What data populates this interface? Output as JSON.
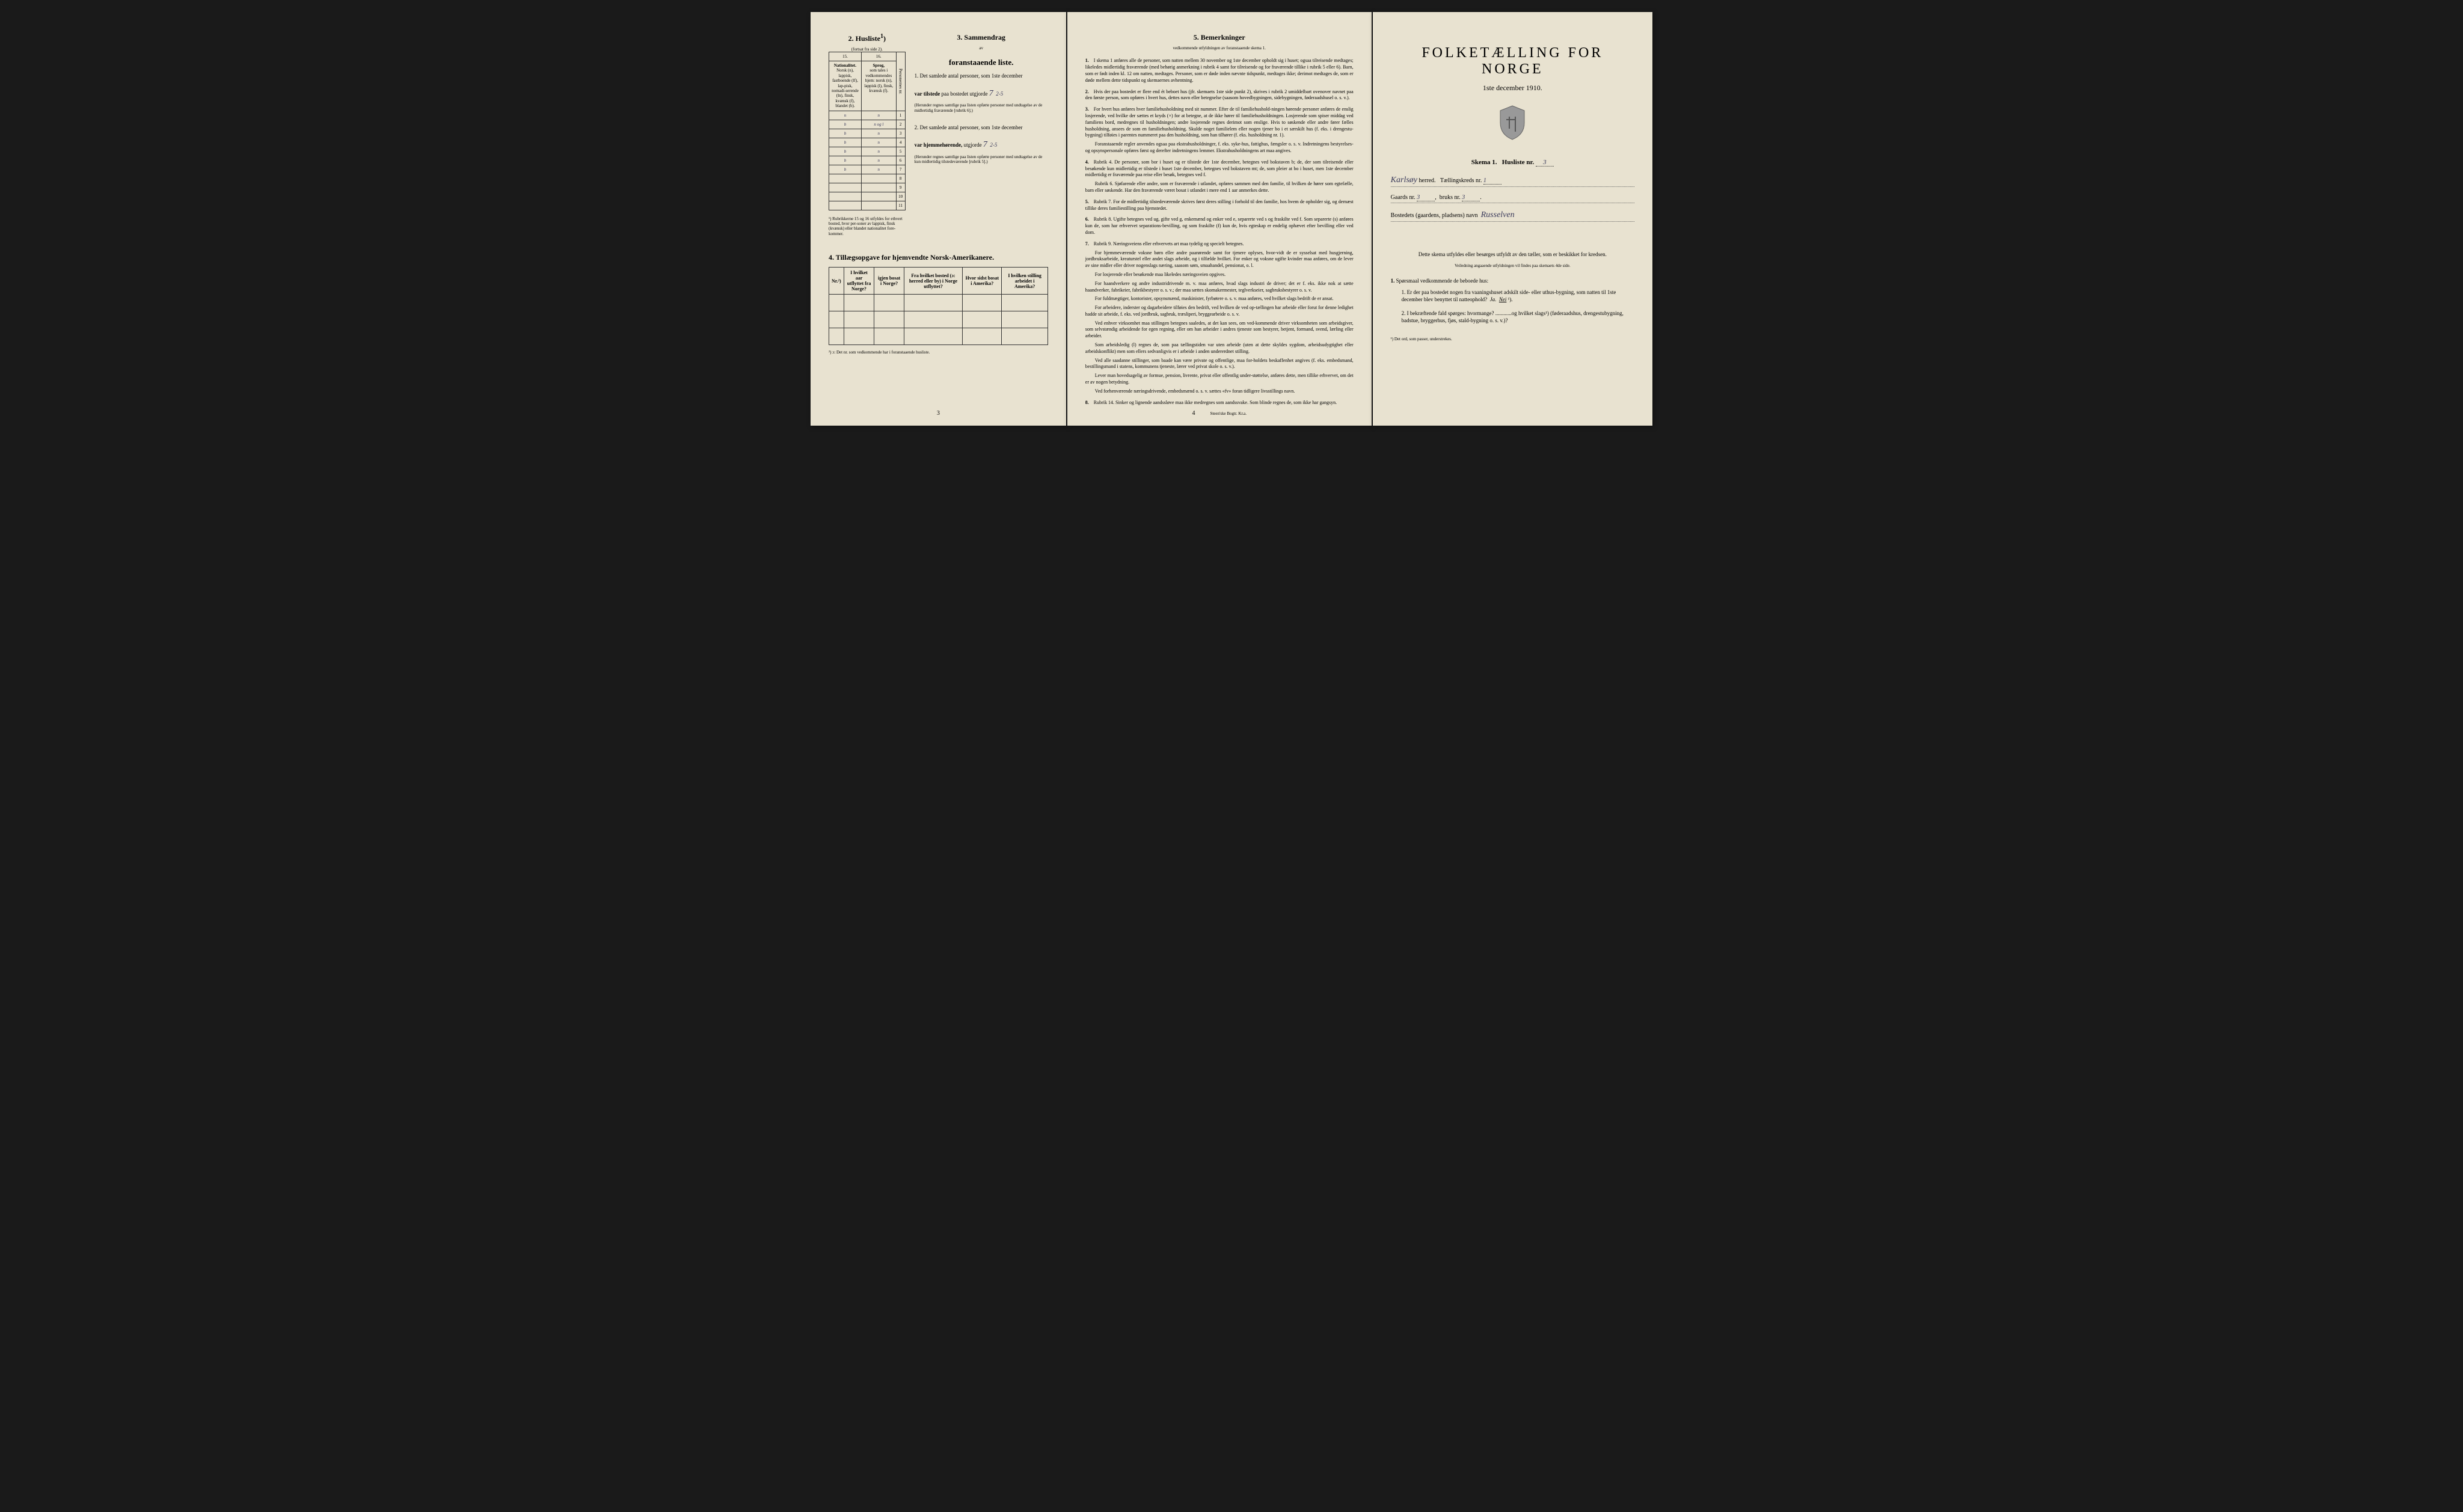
{
  "colors": {
    "paper": "#e8e2d0",
    "ink": "#1a1a1a",
    "handwriting": "#3a3a5a",
    "background": "#1a1a1a"
  },
  "page_left": {
    "section2": {
      "title": "2. Husliste",
      "sup": "1",
      "subtitle": "(fortsat fra side 2).",
      "col_nums": [
        "15.",
        "16."
      ],
      "headers": {
        "col15_title": "Nationalitet.",
        "col15_text": "Norsk (n), lappisk, fastboende (lf), lap-pisk, nomadi-serende (ln), finsk, kvænsk (f), blandet (b).",
        "col16_title": "Sprog,",
        "col16_text": "som tales i vedkommendes hjem: norsk (n), lappisk (l), finsk, kvænsk (f)."
      },
      "side_label": "Personernes nr.",
      "rows": [
        {
          "c15": "n",
          "c16": "n",
          "num": "1"
        },
        {
          "c15": "b",
          "c16": "n og l",
          "num": "2"
        },
        {
          "c15": "b",
          "c16": "n",
          "num": "3"
        },
        {
          "c15": "b",
          "c16": "n",
          "num": "4"
        },
        {
          "c15": "b",
          "c16": "n",
          "num": "5"
        },
        {
          "c15": "b",
          "c16": "n",
          "num": "6"
        },
        {
          "c15": "b",
          "c16": "n",
          "num": "7"
        },
        {
          "c15": "",
          "c16": "",
          "num": "8"
        },
        {
          "c15": "",
          "c16": "",
          "num": "9"
        },
        {
          "c15": "",
          "c16": "",
          "num": "10"
        },
        {
          "c15": "",
          "c16": "",
          "num": "11"
        }
      ],
      "footnote": "¹) Rubrikkerne 15 og 16 utfyldes for ethvert bosted, hvor per-soner av lappisk, finsk (kvænsk) eller blandet nationalitet fore-kommer."
    },
    "section3": {
      "title": "3. Sammendrag",
      "subtitle_av": "av",
      "subtitle": "foranstaaende liste.",
      "item1_text": "Det samlede antal personer, som 1ste december",
      "item1_bold": "var tilstede",
      "item1_rest": "paa bostedet utgjorde",
      "item1_value": "7",
      "item1_extra": "2-5",
      "item1_note": "(Herunder regnes samtlige paa listen opførte personer med undtagelse av de midlertidig fraværende [rubrik 6].)",
      "item2_text": "Det samlede antal personer, som 1ste december",
      "item2_bold": "var hjemmehørende,",
      "item2_rest": "utgjorde",
      "item2_value": "7",
      "item2_extra": "2-5",
      "item2_note": "(Herunder regnes samtlige paa listen opførte personer med undtagelse av de kun midlertidig tilstedeværende [rubrik 5].)"
    },
    "section4": {
      "title": "4. Tillægsopgave for hjemvendte Norsk-Amerikanere.",
      "headers": [
        "Nr.²)",
        "I hvilket aar\nutflyttet fra Norge?",
        "igjen bosat i Norge?",
        "Fra hvilket bosted (ɔ: herred eller by) i Norge utflyttet?",
        "Hvor sidst bosat i Amerika?",
        "I hvilken stilling arbeidet i Amerika?"
      ],
      "empty_rows": 3,
      "footnote": "²) ɔ: Det nr. som vedkommende har i foranstaaende husliste."
    },
    "page_num": "3"
  },
  "page_center": {
    "title": "5. Bemerkninger",
    "subtitle": "vedkommende utfyldningen av foranstaaende skema 1.",
    "items": [
      {
        "num": "1.",
        "text": "I skema 1 anføres alle de personer, som natten mellem 30 november og 1ste december opholdt sig i huset; ogsaa tilreisende medtages; likeledes midlertidig fraværende (med behørig anmerkning i rubrik 4 samt for tilreisende og for fraværende tillike i rubrik 5 eller 6). Barn, som er født inden kl. 12 om natten, medtages. Personer, som er døde inden nævnte tidspunkt, medtages ikke; derimot medtages de, som er døde mellem dette tidspunkt og skemaernes avhentning."
      },
      {
        "num": "2.",
        "text": "Hvis der paa bostedet er flere end ét beboet hus (jfr. skemaets 1ste side punkt 2), skrives i rubrik 2 umiddelbart ovenover navnet paa den første person, som opføres i hvert hus, dettes navn eller betegnelse (saasom hovedbygningen, sidebygningen, føderaadshusel o. s. v.)."
      },
      {
        "num": "3.",
        "text": "For hvert hus anføres hver familiehusholdning med sit nummer. Efter de til familiehushold-ningen hørende personer anføres de enslig losjerende, ved hvilke der sættes et kryds (×) for at betegne, at de ikke hører til familiehusholdningen. Losjerende som spiser middag ved familiens bord, medregnes til husholdningen; andre losjerende regnes derimot som enslige. Hvis to søskende eller andre fører fælles husholdning, ansees de som en familiehusholdning. Skulde noget familielem eller nogen tjener bo i et særskilt hus (f. eks. i drengestu-bygning) tilføies i parentes nummeret paa den husholdning, som han tilhører (f. eks. husholdning nr. 1).",
        "extra": "Foranstaaende regler anvendes ogsaa paa ekstrahusholdninger, f. eks. syke-hus, fattighus, fængsler o. s. v. Indretningens bestyrelses- og opsynspersonale opføres først og derefter indretningens lemmer. Ekstrahusholdningens art maa angives."
      },
      {
        "num": "4.",
        "text": "Rubrik 4. De personer, som bor i huset og er tilstede der 1ste december, betegnes ved bokstaven b; de, der som tilreisende eller besøkende kun midlertidig er tilstede i huset 1ste december, betegnes ved bokstaven mt; de, som pleier at bo i huset, men 1ste december midlertidig er fraværende paa reise eller besøk, betegnes ved f.",
        "extra": "Rubrik 6. Sjøfarende eller andre, som er fraværende i utlandet, opføres sammen med den familie, til hvilken de hører som egtefælle, barn eller søskende. Har den fraværende været bosat i utlandet i mere end 1 aar anmerkes dette."
      },
      {
        "num": "5.",
        "text": "Rubrik 7. For de midlertidig tilstedeværende skrives først deres stilling i forhold til den familie, hos hvem de opholder sig, og dernæst tillike deres familiestilling paa hjemstedet."
      },
      {
        "num": "6.",
        "text": "Rubrik 8. Ugifte betegnes ved ug, gifte ved g, enkemænd og enker ved e, separerte ved s og fraskilte ved f. Som separerte (s) anføres kun de, som har erhvervet separations-bevilling, og som fraskilte (f) kun de, hvis egteskap er endelig ophævet efter bevilling eller ved dom."
      },
      {
        "num": "7.",
        "text": "Rubrik 9. Næringsveiens eller erhvervets art maa tydelig og specielt betegnes.",
        "extras": [
          "For hjemmeværende voksne børn eller andre paarørende samt for tjenere oplyses, hvor-vidt de er sysselsat med husgjerning, jordbruksarbeide, kreaturstel eller andet slags arbeide, og i tilfælde hvilket. For enker og voksne ugifte kvinder maa anføres, om de lever av sine midler eller driver nogenslags næring, saasom søm, smaahandel, pensionat, o. l.",
          "For losjerende eller besøkende maa likeledes næringsveien opgives.",
          "For haandverkere og andre industridrivende m. v. maa anføres, hvad slags industri de driver; det er f. eks. ikke nok at sætte haandverker, fabrikeier, fabrikbestyrer o. s. v.; der maa sættes skomakermester, teglverkseier, sagbruksbestyrer o. s. v.",
          "For fuldmægtiger, kontorister, opsynsmænd, maskinister, fyrbøtere o. s. v. maa anføres, ved hvilket slags bedrift de er ansat.",
          "For arbeidere, inderster og dagarbeidere tilføies den bedrift, ved hvilken de ved op-tællingen har arbeide eller forut for denne ledighet hadde sit arbeide, f. eks. ved jordbruk, sagbruk, træsliperi, bryggearbeide o. s. v.",
          "Ved enhver virksomhet maa stillingen betegnes saaledes, at det kan sees, om ved-kommende driver virksomheten som arbeidsgiver, som selvstændig arbeidende for egen regning, eller om han arbeider i andres tjeneste som bestyrer, betjent, formand, svend, lærling eller arbeider.",
          "Som arbeidsledig (l) regnes de, som paa tællingstiden var uten arbeide (uten at dette skyldes sygdom, arbeidsudygtighet eller arbeidskonflikt) men som ellers sedvanligvis er i arbeide i anden undererdnet stilling.",
          "Ved alle saadanne stillinger, som baade kan være private og offentlige, maa for-holdets beskaffenhet angives (f. eks. embedsmand, bestillingsmand i statens, kommunens tjeneste, lærer ved privat skole o. s. v.).",
          "Lever man hovedsagelig av formue, pension, livrente, privat eller offentlig under-støttelse, anføres dette, men tillike erhvervet, om det er av nogen betydning.",
          "Ved forhenværende næringsdrivende, embedsmænd o. s. v. sættes «fv» foran tidligere livsstillings navn."
        ]
      },
      {
        "num": "8.",
        "text": "Rubrik 14. Sinker og lignende aandssløve maa ikke medregnes som aandssvake. Som blinde regnes de, som ikke har gangsyn."
      }
    ],
    "page_num": "4",
    "printer": "Steen'ske Bogtr. Kr.a."
  },
  "page_right": {
    "title": "FOLKETÆLLING FOR NORGE",
    "date": "1ste december 1910.",
    "schema_label": "Skema 1.",
    "husliste_label": "Husliste nr.",
    "husliste_num": "3",
    "herred_label": "herred.",
    "herred_value": "Karlsøy",
    "kreds_label": "Tællingskreds nr.",
    "kreds_value": "1",
    "gaard_label": "Gaards nr.",
    "gaard_value": "3",
    "bruk_label": "bruks nr.",
    "bruk_value": "3",
    "bosted_label": "Bostedets (gaardens, pladsens) navn",
    "bosted_value": "Russelven",
    "instruction": "Dette skema utfyldes eller besørges utfyldt av den tæller, som er beskikket for kredsen.",
    "instruction2": "Veiledning angaaende utfyldningen vil findes paa skemaets 4de side.",
    "q_title": "Spørsmaal vedkommende de beboede hus:",
    "q_num": "1.",
    "questions": [
      {
        "num": "1.",
        "text": "Er der paa bostedet nogen fra vaaningshuset adskilt side- eller uthus-bygning, som natten til 1ste december blev benyttet til natteophold?",
        "answer_ja": "Ja.",
        "answer_nei": "Nei",
        "note": "¹)."
      },
      {
        "num": "2.",
        "text": "I bekræftende fald spørges: hvormange? ............og hvilket slags¹) (føderaadshus, drengestubygning, badstue, bryggerhus, fjøs, stald-bygning o. s. v.)?"
      }
    ],
    "footnote": "¹) Det ord, som passer, understrekes."
  }
}
